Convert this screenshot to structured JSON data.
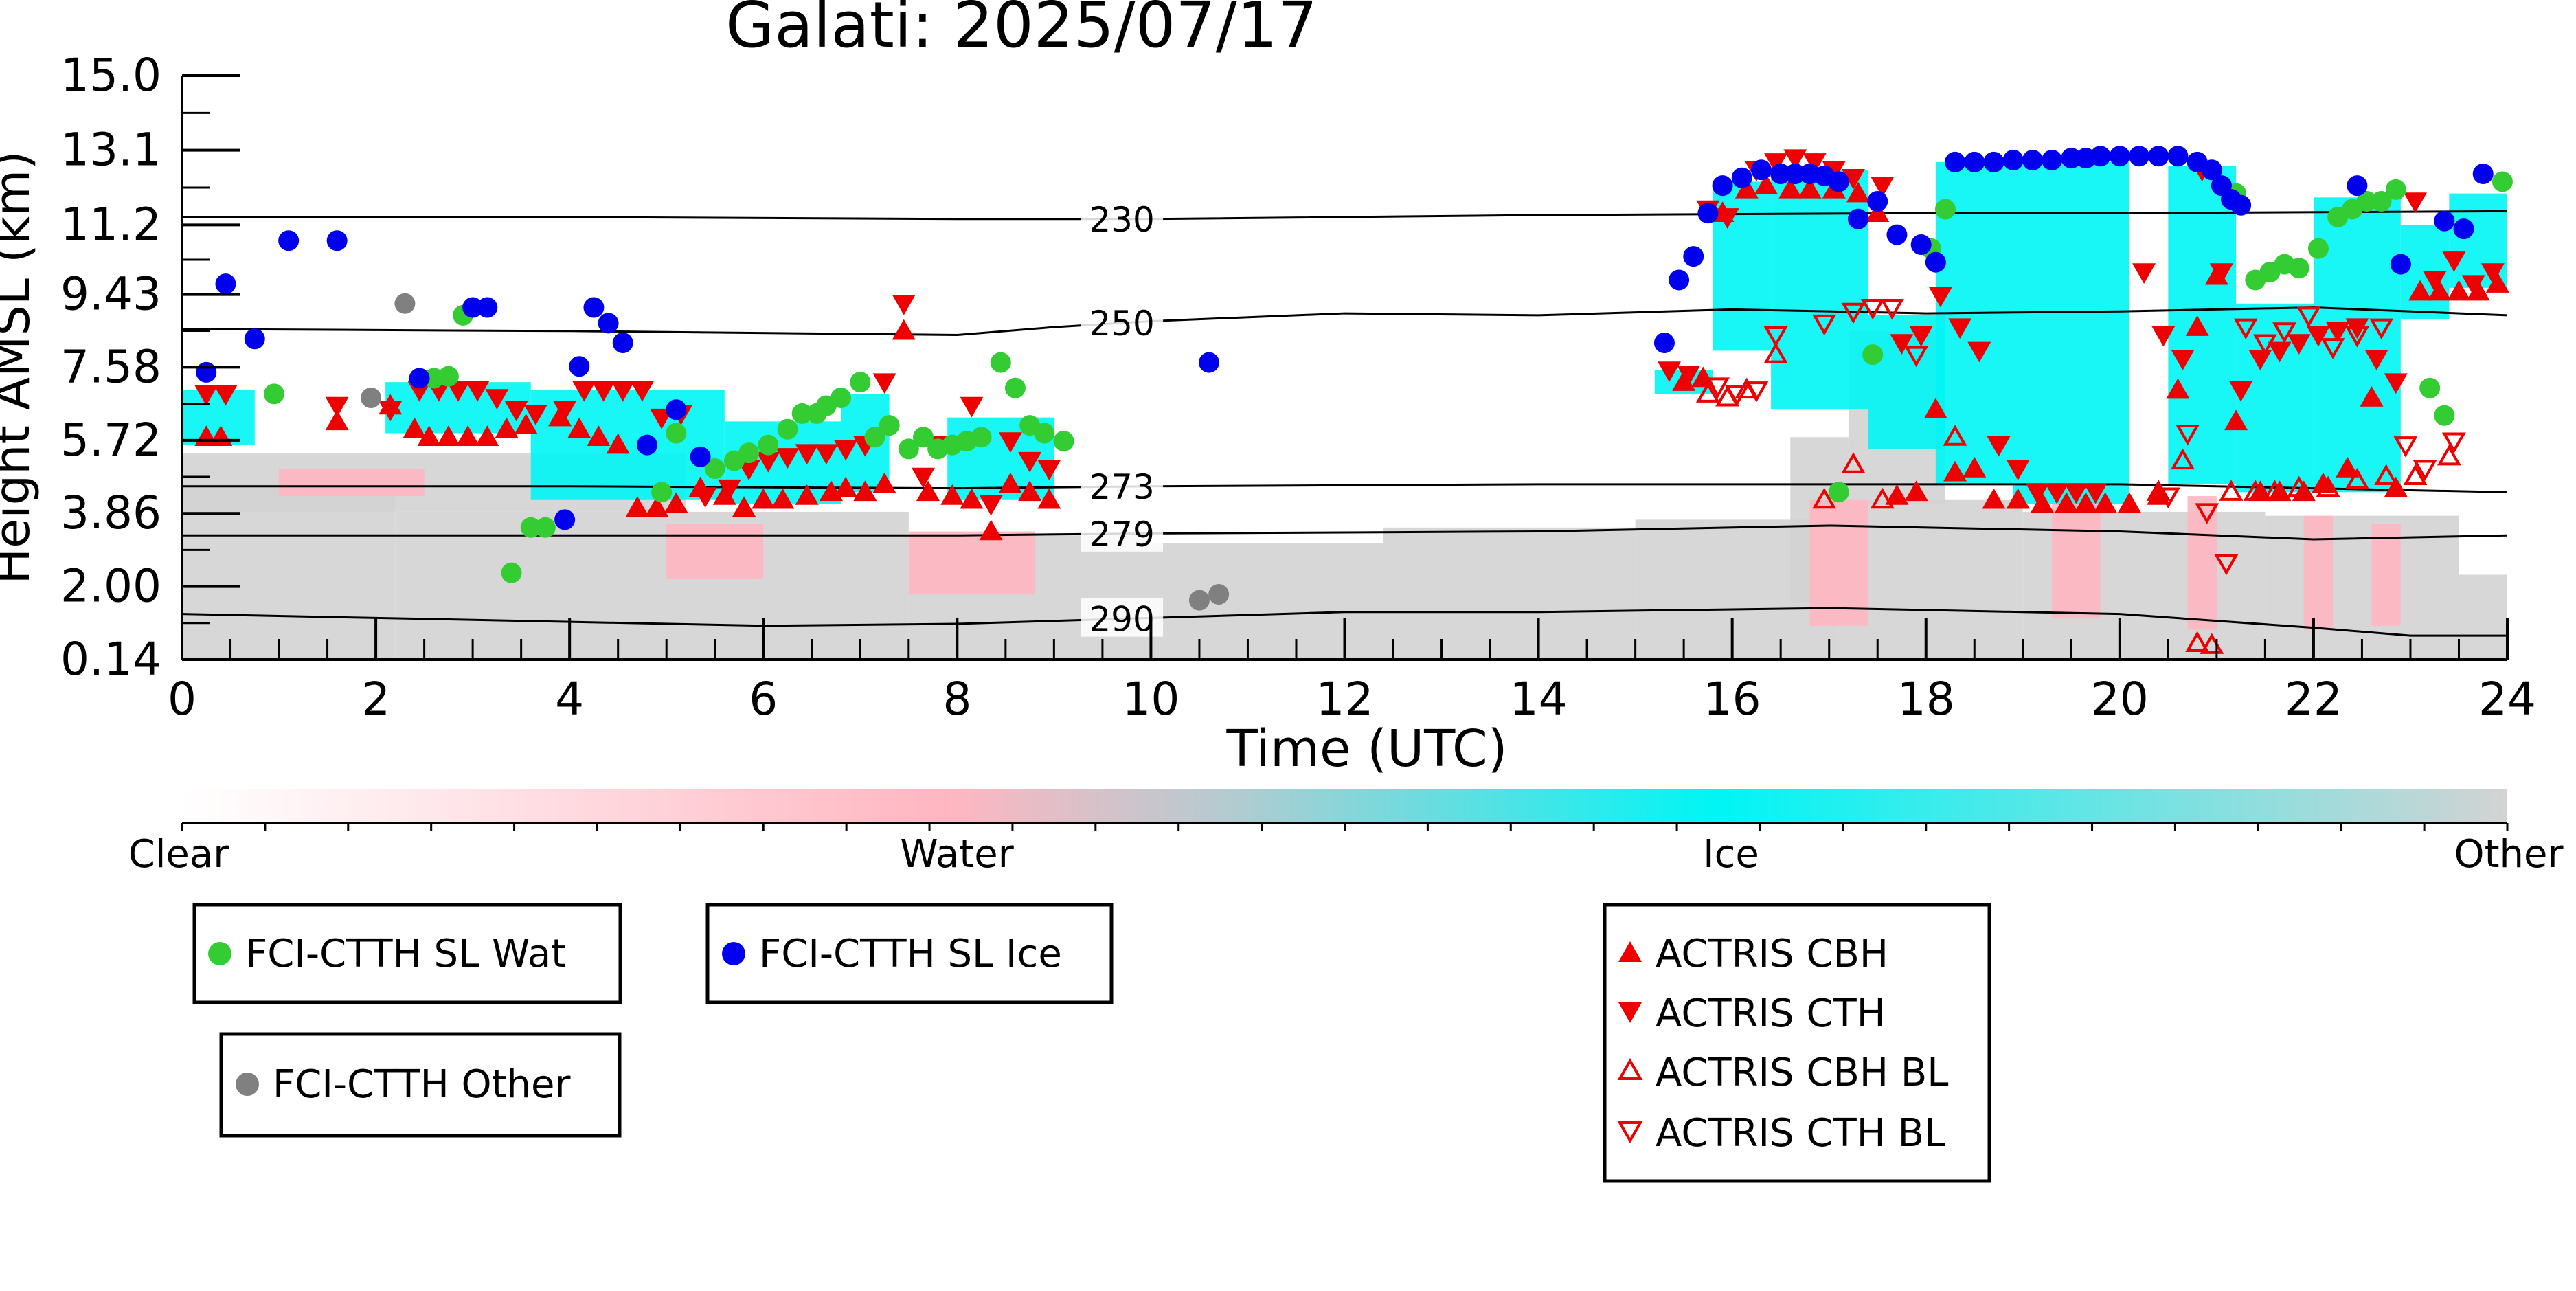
{
  "chart_data": {
    "type": "scatter",
    "title": "Galati: 2025/07/17",
    "xlabel": "Time (UTC)",
    "ylabel": "Height AMSL (km)",
    "xlim": [
      0,
      24
    ],
    "ylim": [
      0.14,
      15.0
    ],
    "x_ticks": [
      "0",
      "2",
      "4",
      "6",
      "8",
      "10",
      "12",
      "14",
      "16",
      "18",
      "20",
      "22",
      "24"
    ],
    "y_ticks": [
      "0.14",
      "2.00",
      "3.86",
      "5.72",
      "7.58",
      "9.43",
      "11.2",
      "13.1",
      "15.0"
    ],
    "colorbar": {
      "labels": [
        "Clear",
        "Water",
        "Ice",
        "Other"
      ],
      "colors": [
        "#ffffff",
        "#ffb6c1",
        "#00f5f5",
        "#d3d3d3"
      ]
    },
    "isotherms": [
      {
        "label": "230",
        "x": [
          0,
          4,
          8,
          10,
          14,
          18,
          20,
          24
        ],
        "y": [
          11.4,
          11.4,
          11.35,
          11.35,
          11.45,
          11.5,
          11.5,
          11.55
        ]
      },
      {
        "label": "250",
        "x": [
          0,
          4,
          8,
          9,
          10,
          12,
          14,
          16,
          18,
          20,
          22,
          24
        ],
        "y": [
          8.55,
          8.5,
          8.4,
          8.6,
          8.75,
          8.95,
          8.9,
          9.05,
          8.95,
          9.0,
          9.1,
          8.9
        ]
      },
      {
        "label": "273",
        "x": [
          0,
          4,
          8,
          10,
          14,
          18,
          20,
          22,
          24
        ],
        "y": [
          4.55,
          4.55,
          4.5,
          4.55,
          4.6,
          4.6,
          4.6,
          4.5,
          4.4
        ]
      },
      {
        "label": "279",
        "x": [
          0,
          4,
          8,
          10,
          14,
          17,
          20,
          22,
          24
        ],
        "y": [
          3.3,
          3.3,
          3.3,
          3.35,
          3.4,
          3.55,
          3.4,
          3.2,
          3.3
        ]
      },
      {
        "label": "290",
        "x": [
          0,
          2,
          4,
          6,
          8,
          10,
          12,
          14,
          17,
          20,
          22,
          23,
          24
        ],
        "y": [
          1.3,
          1.2,
          1.1,
          1.0,
          1.05,
          1.2,
          1.35,
          1.35,
          1.45,
          1.3,
          0.95,
          0.75,
          0.75
        ]
      }
    ],
    "legend_groups": [
      {
        "entries": [
          "FCI-CTTH SL Wat"
        ]
      },
      {
        "entries": [
          "FCI-CTTH SL Ice"
        ]
      },
      {
        "entries": [
          "FCI-CTTH Other"
        ]
      },
      {
        "entries": [
          "ACTRIS CBH",
          "ACTRIS CTH",
          "ACTRIS CBH BL",
          "ACTRIS CTH BL"
        ]
      }
    ],
    "series": [
      {
        "name": "FCI-CTTH SL Wat",
        "marker": "circle",
        "color": "#33cc33",
        "x": [
          0.95,
          2.6,
          2.75,
          2.9,
          3.4,
          3.6,
          3.75,
          4.95,
          5.1,
          5.5,
          5.7,
          5.85,
          6.05,
          6.25,
          6.4,
          6.55,
          6.65,
          6.8,
          7.0,
          7.15,
          7.3,
          7.5,
          7.65,
          7.8,
          7.95,
          8.1,
          8.25,
          8.45,
          8.6,
          8.75,
          8.9,
          9.1,
          17.1,
          17.45,
          18.05,
          18.2,
          21.2,
          21.4,
          21.55,
          21.7,
          21.85,
          22.05,
          22.25,
          22.4,
          22.55,
          22.7,
          22.85,
          23.2,
          23.35,
          23.95
        ],
        "y": [
          6.9,
          7.3,
          7.35,
          8.9,
          2.35,
          3.5,
          3.5,
          4.4,
          5.9,
          5.0,
          5.2,
          5.4,
          5.6,
          6.0,
          6.4,
          6.4,
          6.6,
          6.8,
          7.2,
          5.8,
          6.1,
          5.5,
          5.8,
          5.5,
          5.6,
          5.7,
          5.8,
          7.7,
          7.05,
          6.1,
          5.9,
          5.7,
          4.4,
          7.9,
          10.6,
          11.6,
          12.0,
          9.8,
          10.0,
          10.2,
          10.1,
          10.6,
          11.4,
          11.6,
          11.8,
          11.8,
          12.1,
          7.05,
          6.35,
          12.3
        ]
      },
      {
        "name": "FCI-CTTH SL Ice",
        "marker": "circle",
        "color": "#0000ee",
        "x": [
          0.25,
          0.45,
          0.75,
          1.1,
          1.6,
          2.45,
          3.0,
          3.15,
          3.95,
          4.1,
          4.25,
          4.4,
          4.55,
          4.8,
          5.1,
          5.35,
          10.6,
          15.3,
          15.45,
          15.6,
          15.75,
          15.9,
          16.1,
          16.3,
          16.5,
          16.65,
          16.8,
          16.95,
          17.1,
          17.3,
          17.5,
          17.7,
          17.95,
          18.1,
          18.3,
          18.5,
          18.7,
          18.9,
          19.1,
          19.3,
          19.5,
          19.65,
          19.8,
          20.0,
          20.2,
          20.4,
          20.6,
          20.8,
          20.95,
          21.05,
          21.15,
          21.25,
          22.45,
          22.9,
          23.35,
          23.55,
          23.75
        ],
        "y": [
          7.45,
          9.7,
          8.3,
          10.8,
          10.8,
          7.3,
          9.1,
          9.1,
          3.7,
          7.6,
          9.1,
          8.7,
          8.2,
          5.6,
          6.5,
          5.3,
          7.7,
          8.2,
          9.8,
          10.4,
          11.5,
          12.2,
          12.4,
          12.6,
          12.5,
          12.5,
          12.5,
          12.45,
          12.3,
          11.35,
          11.8,
          10.95,
          10.7,
          10.25,
          12.8,
          12.8,
          12.8,
          12.85,
          12.85,
          12.85,
          12.9,
          12.9,
          12.95,
          12.95,
          12.95,
          12.95,
          12.95,
          12.8,
          12.6,
          12.2,
          11.85,
          11.7,
          12.2,
          10.2,
          11.3,
          11.1,
          12.5
        ]
      },
      {
        "name": "FCI-CTTH Other",
        "marker": "circle",
        "color": "#808080",
        "x": [
          2.3,
          1.95,
          10.5,
          10.7
        ],
        "y": [
          9.2,
          6.8,
          1.65,
          1.8
        ]
      },
      {
        "name": "ACTRIS CBH",
        "marker": "triangle-up",
        "color": "#ee0000",
        "filled": true,
        "x": [
          0.25,
          0.4,
          1.6,
          2.15,
          2.4,
          2.55,
          2.75,
          2.95,
          3.15,
          3.35,
          3.55,
          3.9,
          4.1,
          4.3,
          4.5,
          4.7,
          4.9,
          5.1,
          5.35,
          5.6,
          5.8,
          6.0,
          6.2,
          6.45,
          6.7,
          6.85,
          7.05,
          7.25,
          7.45,
          7.7,
          7.95,
          8.15,
          8.35,
          8.55,
          8.75,
          8.95,
          15.5,
          15.7,
          15.9,
          16.15,
          16.35,
          16.6,
          16.8,
          17.05,
          17.3,
          17.5,
          17.7,
          17.9,
          18.1,
          18.3,
          18.5,
          18.7,
          18.95,
          19.2,
          19.45,
          19.65,
          19.85,
          20.1,
          20.4,
          20.6,
          20.8,
          21.0,
          21.2,
          21.45,
          21.65,
          21.9,
          22.1,
          22.35,
          22.6,
          22.85,
          23.1,
          23.3,
          23.5,
          23.7,
          23.9
        ],
        "y": [
          5.8,
          5.8,
          6.2,
          6.6,
          6.0,
          5.8,
          5.8,
          5.8,
          5.8,
          6.0,
          6.1,
          6.3,
          6.0,
          5.8,
          5.6,
          4.0,
          4.0,
          4.1,
          4.5,
          4.3,
          4.0,
          4.2,
          4.2,
          4.3,
          4.4,
          4.5,
          4.4,
          4.6,
          8.5,
          4.4,
          4.3,
          4.2,
          3.4,
          4.6,
          4.4,
          4.2,
          7.2,
          7.3,
          11.5,
          12.1,
          12.2,
          12.1,
          12.1,
          12.1,
          12.0,
          11.5,
          4.3,
          4.4,
          6.5,
          4.9,
          5.0,
          4.2,
          4.2,
          4.1,
          4.1,
          4.1,
          4.1,
          4.1,
          4.3,
          7.0,
          8.6,
          9.9,
          6.2,
          4.4,
          4.4,
          4.4,
          4.6,
          5.0,
          6.8,
          4.5,
          9.5,
          9.5,
          9.5,
          9.5,
          9.7
        ]
      },
      {
        "name": "ACTRIS CTH",
        "marker": "triangle-down",
        "color": "#ee0000",
        "filled": true,
        "x": [
          0.25,
          0.45,
          1.6,
          2.15,
          2.45,
          2.65,
          2.85,
          3.05,
          3.25,
          3.45,
          3.65,
          3.95,
          4.15,
          4.35,
          4.55,
          4.75,
          4.95,
          5.15,
          5.4,
          5.65,
          5.85,
          6.05,
          6.25,
          6.45,
          6.65,
          6.85,
          7.05,
          7.25,
          7.45,
          7.65,
          7.85,
          8.15,
          8.35,
          8.55,
          8.75,
          8.95,
          15.35,
          15.55,
          15.75,
          15.95,
          16.25,
          16.45,
          16.65,
          16.85,
          17.05,
          17.25,
          17.55,
          17.75,
          17.95,
          18.15,
          18.35,
          18.55,
          18.75,
          18.95,
          19.15,
          19.35,
          19.55,
          19.75,
          20.25,
          20.45,
          20.65,
          20.85,
          21.05,
          21.25,
          21.45,
          21.65,
          21.85,
          22.05,
          22.25,
          22.45,
          22.65,
          22.85,
          23.05,
          23.25,
          23.45,
          23.65,
          23.85
        ],
        "y": [
          6.9,
          6.9,
          6.6,
          6.5,
          7.0,
          7.0,
          7.0,
          7.0,
          6.8,
          6.5,
          6.4,
          6.5,
          7.0,
          7.0,
          7.0,
          7.0,
          6.3,
          6.4,
          4.3,
          4.5,
          5.0,
          5.2,
          5.3,
          5.4,
          5.4,
          5.5,
          5.6,
          7.2,
          9.2,
          4.8,
          5.6,
          6.6,
          4.1,
          5.7,
          5.2,
          5.0,
          7.5,
          7.4,
          11.6,
          11.4,
          12.6,
          12.8,
          12.9,
          12.8,
          12.6,
          12.4,
          12.2,
          8.2,
          8.4,
          9.4,
          8.6,
          8.0,
          5.6,
          5.0,
          4.4,
          4.4,
          4.4,
          4.4,
          10.0,
          8.4,
          7.8,
          12.6,
          10.0,
          7.0,
          7.8,
          8.0,
          8.2,
          8.4,
          8.5,
          8.6,
          7.8,
          7.2,
          11.8,
          9.8,
          10.3,
          9.7,
          10.0
        ]
      },
      {
        "name": "ACTRIS CBH BL",
        "marker": "triangle-up",
        "color": "#ee0000",
        "filled": false,
        "x": [
          15.75,
          15.95,
          16.15,
          16.45,
          16.95,
          17.25,
          17.55,
          18.3,
          20.4,
          20.65,
          20.8,
          20.95,
          21.15,
          21.4,
          21.6,
          21.85,
          22.15,
          22.45,
          22.75,
          23.05,
          23.4
        ],
        "y": [
          6.9,
          6.8,
          7.0,
          7.9,
          4.2,
          5.1,
          4.2,
          5.8,
          4.4,
          5.2,
          0.55,
          0.5,
          4.4,
          4.4,
          4.4,
          4.5,
          4.5,
          4.7,
          4.8,
          4.8,
          5.3
        ]
      },
      {
        "name": "ACTRIS CTH BL",
        "marker": "triangle-down",
        "color": "#ee0000",
        "filled": false,
        "x": [
          15.85,
          16.05,
          16.25,
          16.45,
          16.95,
          17.25,
          17.45,
          17.65,
          17.9,
          20.5,
          20.7,
          20.9,
          21.1,
          21.3,
          21.5,
          21.7,
          21.95,
          22.2,
          22.45,
          22.7,
          22.95,
          23.15,
          23.45
        ],
        "y": [
          7.1,
          6.9,
          7.0,
          8.4,
          8.7,
          9.0,
          9.1,
          9.1,
          7.9,
          4.3,
          5.9,
          3.9,
          2.6,
          8.6,
          8.2,
          8.5,
          8.9,
          8.1,
          8.4,
          8.6,
          5.6,
          5.0,
          5.7
        ]
      }
    ]
  }
}
